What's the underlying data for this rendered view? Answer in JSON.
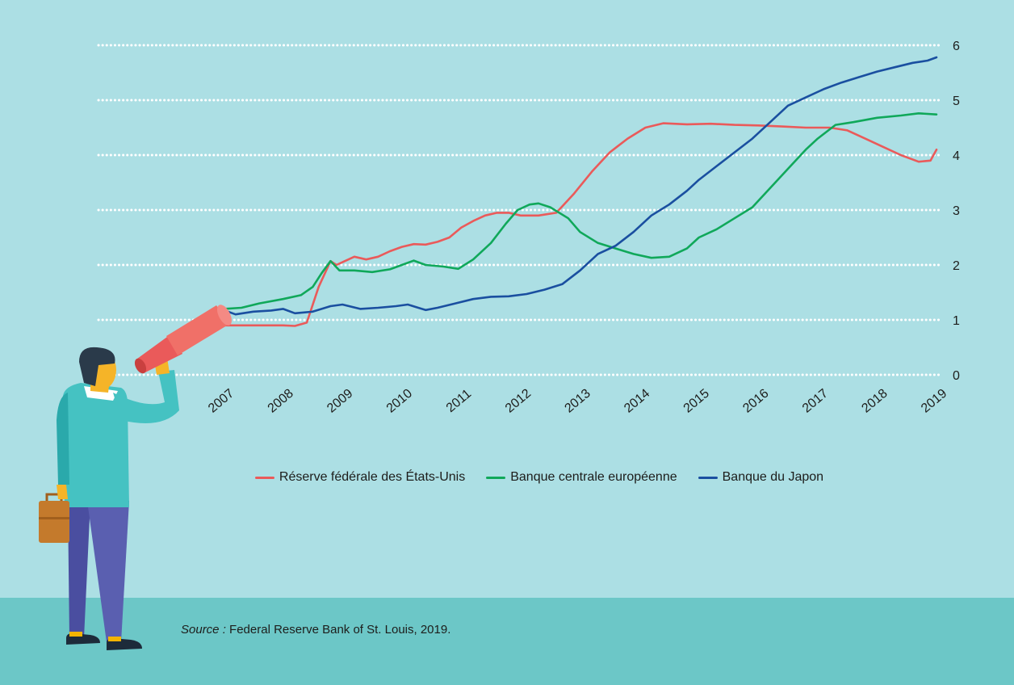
{
  "colors": {
    "background": "#acdfe4",
    "footer_band": "#6cc7c7",
    "grid": "#ffffff",
    "text": "#1d1d1b"
  },
  "source": {
    "label": "Source :",
    "text": "Federal Reserve Bank of St. Louis, 2019."
  },
  "illustration": {
    "figure": "person-with-telescope",
    "icons": [
      "telescope-icon",
      "briefcase-icon"
    ]
  },
  "chart_data": {
    "type": "line",
    "title": "",
    "xlabel": "",
    "ylabel": "",
    "xlim": [
      2007,
      2019
    ],
    "ylim": [
      0,
      6
    ],
    "y_ticks": [
      "0",
      "1",
      "2",
      "3",
      "4",
      "5",
      "6"
    ],
    "x_ticks": [
      "2007",
      "2008",
      "2009",
      "2010",
      "2011",
      "2012",
      "2013",
      "2014",
      "2015",
      "2016",
      "2017",
      "2018",
      "2019"
    ],
    "grid": "horizontal-dotted",
    "y_axis_position": "right",
    "legend_position": "bottom-center",
    "series": [
      {
        "name": "Réserve fédérale des États-Unis",
        "color": "#ea5a5a",
        "points": [
          [
            2007.0,
            0.9
          ],
          [
            2007.5,
            0.9
          ],
          [
            2008.0,
            0.9
          ],
          [
            2008.2,
            0.89
          ],
          [
            2008.4,
            0.95
          ],
          [
            2008.6,
            1.6
          ],
          [
            2008.8,
            2.07
          ],
          [
            2008.9,
            2.0
          ],
          [
            2009.0,
            2.05
          ],
          [
            2009.2,
            2.15
          ],
          [
            2009.4,
            2.1
          ],
          [
            2009.6,
            2.15
          ],
          [
            2009.8,
            2.25
          ],
          [
            2010.0,
            2.33
          ],
          [
            2010.2,
            2.38
          ],
          [
            2010.4,
            2.37
          ],
          [
            2010.6,
            2.42
          ],
          [
            2010.8,
            2.5
          ],
          [
            2011.0,
            2.68
          ],
          [
            2011.2,
            2.8
          ],
          [
            2011.4,
            2.9
          ],
          [
            2011.6,
            2.95
          ],
          [
            2011.8,
            2.95
          ],
          [
            2012.0,
            2.9
          ],
          [
            2012.3,
            2.9
          ],
          [
            2012.6,
            2.95
          ],
          [
            2012.9,
            3.3
          ],
          [
            2013.2,
            3.7
          ],
          [
            2013.5,
            4.05
          ],
          [
            2013.8,
            4.3
          ],
          [
            2014.1,
            4.5
          ],
          [
            2014.4,
            4.58
          ],
          [
            2014.8,
            4.56
          ],
          [
            2015.2,
            4.57
          ],
          [
            2015.6,
            4.55
          ],
          [
            2016.0,
            4.54
          ],
          [
            2016.4,
            4.52
          ],
          [
            2016.8,
            4.5
          ],
          [
            2017.2,
            4.5
          ],
          [
            2017.5,
            4.45
          ],
          [
            2017.8,
            4.3
          ],
          [
            2018.1,
            4.15
          ],
          [
            2018.4,
            4.0
          ],
          [
            2018.7,
            3.88
          ],
          [
            2018.9,
            3.9
          ],
          [
            2019.0,
            4.1
          ]
        ]
      },
      {
        "name": "Banque centrale européenne",
        "color": "#10a85a",
        "points": [
          [
            2007.0,
            1.2
          ],
          [
            2007.3,
            1.22
          ],
          [
            2007.6,
            1.3
          ],
          [
            2008.0,
            1.38
          ],
          [
            2008.3,
            1.45
          ],
          [
            2008.5,
            1.6
          ],
          [
            2008.65,
            1.85
          ],
          [
            2008.8,
            2.07
          ],
          [
            2008.95,
            1.9
          ],
          [
            2009.2,
            1.9
          ],
          [
            2009.5,
            1.87
          ],
          [
            2009.8,
            1.92
          ],
          [
            2010.0,
            2.0
          ],
          [
            2010.2,
            2.08
          ],
          [
            2010.4,
            2.0
          ],
          [
            2010.7,
            1.97
          ],
          [
            2010.95,
            1.93
          ],
          [
            2011.2,
            2.1
          ],
          [
            2011.5,
            2.4
          ],
          [
            2011.75,
            2.75
          ],
          [
            2011.95,
            3.0
          ],
          [
            2012.15,
            3.1
          ],
          [
            2012.3,
            3.12
          ],
          [
            2012.5,
            3.05
          ],
          [
            2012.8,
            2.85
          ],
          [
            2013.0,
            2.6
          ],
          [
            2013.3,
            2.4
          ],
          [
            2013.6,
            2.3
          ],
          [
            2013.9,
            2.2
          ],
          [
            2014.2,
            2.13
          ],
          [
            2014.5,
            2.15
          ],
          [
            2014.8,
            2.3
          ],
          [
            2015.0,
            2.5
          ],
          [
            2015.3,
            2.65
          ],
          [
            2015.6,
            2.85
          ],
          [
            2015.9,
            3.05
          ],
          [
            2016.2,
            3.4
          ],
          [
            2016.5,
            3.75
          ],
          [
            2016.8,
            4.1
          ],
          [
            2017.0,
            4.3
          ],
          [
            2017.3,
            4.55
          ],
          [
            2017.6,
            4.6
          ],
          [
            2018.0,
            4.68
          ],
          [
            2018.4,
            4.72
          ],
          [
            2018.7,
            4.76
          ],
          [
            2019.0,
            4.74
          ]
        ]
      },
      {
        "name": "Banque du Japon",
        "color": "#1a4fa0",
        "points": [
          [
            2007.0,
            1.18
          ],
          [
            2007.2,
            1.1
          ],
          [
            2007.5,
            1.15
          ],
          [
            2007.8,
            1.17
          ],
          [
            2008.0,
            1.2
          ],
          [
            2008.2,
            1.12
          ],
          [
            2008.5,
            1.15
          ],
          [
            2008.8,
            1.25
          ],
          [
            2009.0,
            1.28
          ],
          [
            2009.3,
            1.2
          ],
          [
            2009.6,
            1.22
          ],
          [
            2009.9,
            1.25
          ],
          [
            2010.1,
            1.28
          ],
          [
            2010.4,
            1.18
          ],
          [
            2010.6,
            1.22
          ],
          [
            2010.9,
            1.3
          ],
          [
            2011.2,
            1.38
          ],
          [
            2011.5,
            1.42
          ],
          [
            2011.8,
            1.43
          ],
          [
            2012.1,
            1.47
          ],
          [
            2012.4,
            1.55
          ],
          [
            2012.7,
            1.65
          ],
          [
            2013.0,
            1.9
          ],
          [
            2013.3,
            2.2
          ],
          [
            2013.6,
            2.35
          ],
          [
            2013.9,
            2.6
          ],
          [
            2014.2,
            2.9
          ],
          [
            2014.5,
            3.1
          ],
          [
            2014.8,
            3.35
          ],
          [
            2015.0,
            3.55
          ],
          [
            2015.3,
            3.8
          ],
          [
            2015.6,
            4.05
          ],
          [
            2015.9,
            4.3
          ],
          [
            2016.2,
            4.6
          ],
          [
            2016.5,
            4.9
          ],
          [
            2016.8,
            5.05
          ],
          [
            2017.1,
            5.2
          ],
          [
            2017.4,
            5.32
          ],
          [
            2017.7,
            5.42
          ],
          [
            2018.0,
            5.52
          ],
          [
            2018.3,
            5.6
          ],
          [
            2018.6,
            5.68
          ],
          [
            2018.85,
            5.72
          ],
          [
            2019.0,
            5.78
          ]
        ]
      }
    ]
  }
}
